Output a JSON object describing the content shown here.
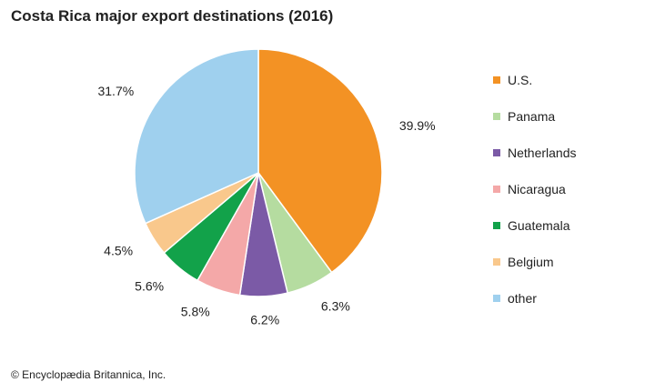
{
  "title": "Costa Rica major export destinations (2016)",
  "credit": "© Encyclopædia Britannica, Inc.",
  "chart_data": {
    "type": "pie",
    "title": "Costa Rica major export destinations (2016)",
    "unit": "%",
    "legend_position": "right",
    "start_angle": "12 o'clock",
    "direction": "clockwise",
    "slices": [
      {
        "label": "U.S.",
        "value": 39.9,
        "display": "39.9%",
        "color": "#f39224"
      },
      {
        "label": "Panama",
        "value": 6.3,
        "display": "6.3%",
        "color": "#b5dca0"
      },
      {
        "label": "Netherlands",
        "value": 6.2,
        "display": "6.2%",
        "color": "#7b5aa6"
      },
      {
        "label": "Nicaragua",
        "value": 5.8,
        "display": "5.8%",
        "color": "#f4a8a8"
      },
      {
        "label": "Guatemala",
        "value": 5.6,
        "display": "5.6%",
        "color": "#12a24a"
      },
      {
        "label": "Belgium",
        "value": 4.5,
        "display": "4.5%",
        "color": "#f9c88c"
      },
      {
        "label": "other",
        "value": 31.7,
        "display": "31.7%",
        "color": "#9fd0ee"
      }
    ]
  }
}
